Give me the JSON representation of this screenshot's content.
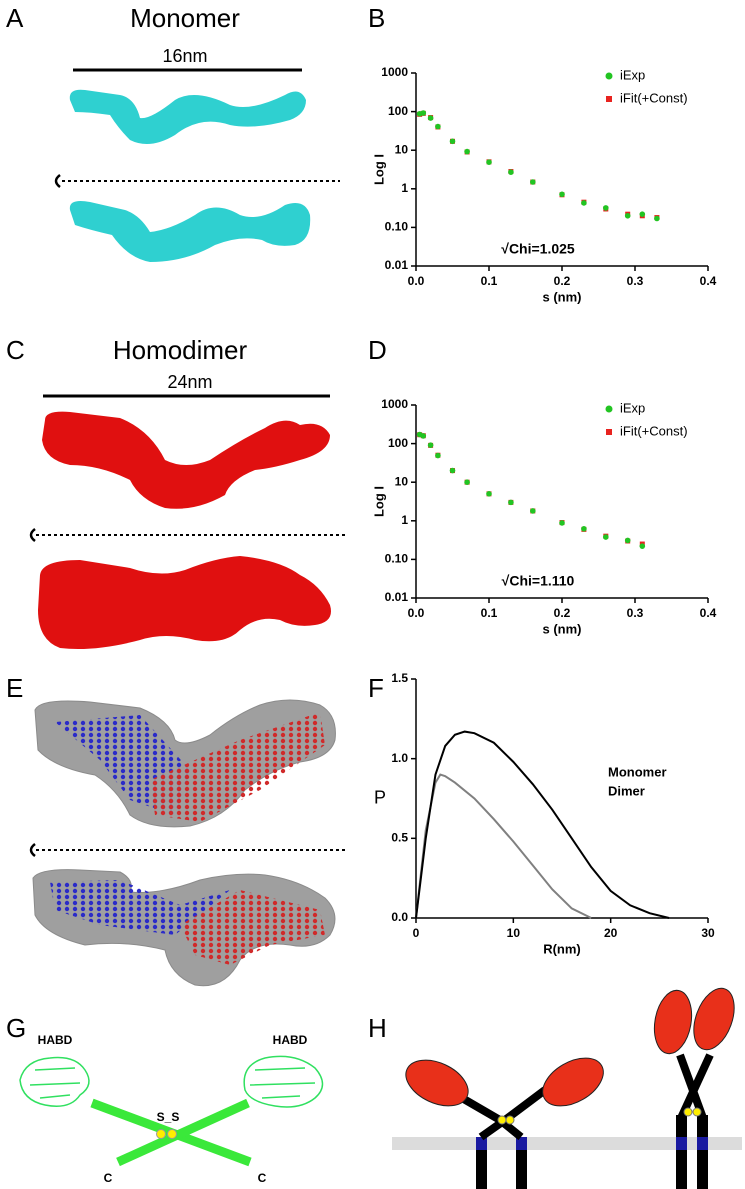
{
  "panels": {
    "letters": [
      "A",
      "B",
      "C",
      "D",
      "E",
      "F",
      "G",
      "H"
    ],
    "monomer": {
      "title": "Monomer",
      "length": "16nm"
    },
    "homodimer": {
      "title": "Homodimer",
      "length": "24nm"
    },
    "g": {
      "labels": [
        "HABD",
        "HABD",
        "S_S",
        "C",
        "C"
      ]
    }
  },
  "chart_data": [
    {
      "type": "scatter",
      "ylog": true,
      "xlabel": "s (nm)",
      "ylabel": "Log I",
      "annotation": "√Chi=1.025",
      "xlim": [
        0,
        0.4
      ],
      "ylim": [
        0.01,
        1000
      ],
      "xticks": [
        {
          "value": 0,
          "label": "0.0"
        },
        0.1,
        0.2,
        0.3,
        0.4
      ],
      "yticks": [
        1000,
        100,
        10,
        1,
        {
          "value": 0.1,
          "label": "0.10"
        },
        {
          "value": 0.01,
          "label": "0.01"
        }
      ],
      "x": [
        0.005,
        0.01,
        0.02,
        0.03,
        0.05,
        0.07,
        0.1,
        0.13,
        0.16,
        0.2,
        0.23,
        0.26,
        0.29,
        0.31,
        0.33
      ],
      "series": [
        {
          "name": "iFit(+Const)",
          "color": "#e8231f",
          "marker": "square",
          "values": [
            85,
            90,
            70,
            40,
            17,
            9,
            5,
            2.8,
            1.5,
            0.7,
            0.45,
            0.3,
            0.22,
            0.2,
            0.18
          ]
        },
        {
          "name": "iExp",
          "color": "#22c422",
          "marker": "circle",
          "values": [
            88,
            92,
            68,
            41,
            17,
            9.2,
            4.9,
            2.7,
            1.5,
            0.72,
            0.43,
            0.32,
            0.2,
            0.22,
            0.17
          ]
        }
      ]
    },
    {
      "type": "scatter",
      "ylog": true,
      "xlabel": "s (nm)",
      "ylabel": "Log I",
      "annotation": "√Chi=1.110",
      "xlim": [
        0,
        0.4
      ],
      "ylim": [
        0.01,
        1000
      ],
      "xticks": [
        {
          "value": 0,
          "label": "0.0"
        },
        0.1,
        0.2,
        0.3,
        0.4
      ],
      "yticks": [
        1000,
        100,
        10,
        1,
        {
          "value": 0.1,
          "label": "0.10"
        },
        {
          "value": 0.01,
          "label": "0.01"
        }
      ],
      "x": [
        0.005,
        0.01,
        0.02,
        0.03,
        0.05,
        0.07,
        0.1,
        0.13,
        0.16,
        0.2,
        0.23,
        0.26,
        0.29,
        0.31
      ],
      "series": [
        {
          "name": "iFit(+Const)",
          "color": "#e8231f",
          "marker": "square",
          "values": [
            170,
            160,
            90,
            50,
            20,
            10,
            5,
            3,
            1.8,
            0.9,
            0.6,
            0.4,
            0.3,
            0.25
          ]
        },
        {
          "name": "iExp",
          "color": "#22c422",
          "marker": "circle",
          "values": [
            172,
            158,
            91,
            49,
            20,
            10,
            5,
            3,
            1.8,
            0.88,
            0.62,
            0.38,
            0.31,
            0.22
          ]
        }
      ]
    },
    {
      "type": "line",
      "xlabel": "R(nm)",
      "ylabel": "P",
      "xlim": [
        0,
        30
      ],
      "ylim": [
        0,
        1.5
      ],
      "xticks": [
        0,
        10,
        20,
        30
      ],
      "yticks": [
        {
          "value": 0,
          "label": "0.0"
        },
        0.5,
        {
          "value": 1,
          "label": "1.0"
        },
        1.5
      ],
      "series": [
        {
          "name": "Monomer",
          "color": "#808080",
          "x": [
            0,
            1,
            2,
            2.5,
            3,
            4,
            6,
            8,
            10,
            12,
            14,
            16,
            18
          ],
          "values": [
            0,
            0.55,
            0.85,
            0.9,
            0.89,
            0.85,
            0.75,
            0.62,
            0.48,
            0.33,
            0.18,
            0.06,
            0
          ]
        },
        {
          "name": "Dimer",
          "color": "#000000",
          "x": [
            0,
            1,
            2,
            3,
            4,
            5,
            6,
            8,
            10,
            12,
            14,
            16,
            18,
            20,
            22,
            24,
            26
          ],
          "values": [
            0,
            0.5,
            0.9,
            1.08,
            1.15,
            1.17,
            1.16,
            1.1,
            0.98,
            0.84,
            0.68,
            0.5,
            0.32,
            0.17,
            0.08,
            0.03,
            0
          ]
        }
      ]
    }
  ]
}
